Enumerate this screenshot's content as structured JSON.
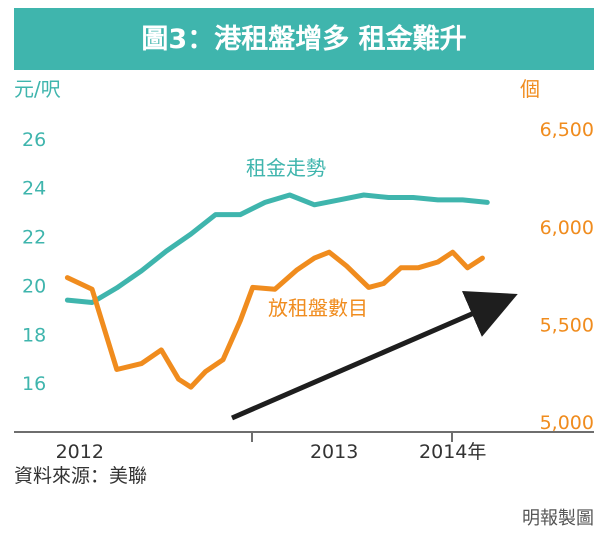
{
  "header": {
    "title": "圖3：港租盤增多 租金難升"
  },
  "chart_data": {
    "type": "line",
    "title": "圖3：港租盤增多 租金難升",
    "y_left": {
      "label": "元/呎",
      "ticks": [
        16,
        18,
        20,
        22,
        24,
        26
      ],
      "range": [
        14,
        28
      ]
    },
    "y_right": {
      "label": "個",
      "ticks": [
        "5,000",
        "5,500",
        "6,000",
        "6,500"
      ],
      "tick_values": [
        5000,
        5500,
        6000,
        6500
      ],
      "range": [
        4950,
        6700
      ]
    },
    "x_axis": {
      "labels": [
        "2012",
        "2013",
        "2014年"
      ],
      "label_positions": [
        0.5,
        10.8,
        15.6
      ],
      "range": [
        -0.3,
        18
      ]
    },
    "series": [
      {
        "name": "租金走勢",
        "axis": "left",
        "color": "#3fb5ad",
        "x": [
          0,
          1,
          2,
          3,
          4,
          5,
          6,
          7,
          8,
          9,
          10,
          11,
          12,
          13,
          14,
          15,
          16,
          17
        ],
        "values": [
          19.4,
          19.3,
          19.9,
          20.6,
          21.4,
          22.1,
          22.9,
          22.9,
          23.4,
          23.7,
          23.3,
          23.5,
          23.7,
          23.6,
          23.6,
          23.5,
          23.5,
          23.4
        ]
      },
      {
        "name": "放租盤數目",
        "axis": "right",
        "color": "#f08c1e",
        "x": [
          0,
          1,
          2,
          3,
          3.8,
          4.5,
          5,
          5.6,
          6.3,
          7,
          7.5,
          8.4,
          9.3,
          10,
          10.6,
          11.3,
          12.2,
          12.8,
          13.5,
          14.2,
          15,
          15.6,
          16.2,
          16.8
        ],
        "values": [
          5740,
          5680,
          5270,
          5300,
          5370,
          5220,
          5180,
          5260,
          5320,
          5520,
          5690,
          5680,
          5780,
          5840,
          5870,
          5800,
          5690,
          5710,
          5790,
          5790,
          5820,
          5870,
          5790,
          5840
        ]
      }
    ],
    "annotations": [
      {
        "text": "租金走勢",
        "series": "租金走勢"
      },
      {
        "text": "放租盤數目",
        "series": "放租盤數目"
      },
      {
        "type": "trend-arrow",
        "color": "#1e1e1e"
      }
    ],
    "grid": false,
    "legend": "inline labels"
  },
  "footer": {
    "source": "資料來源：美聯",
    "credit": "明報製圖"
  },
  "colors": {
    "header_bg": "#3fb5ad",
    "rent": "#3fb5ad",
    "listings": "#f08c1e",
    "arrow": "#1e1e1e",
    "axis": "#6e6e6e"
  }
}
